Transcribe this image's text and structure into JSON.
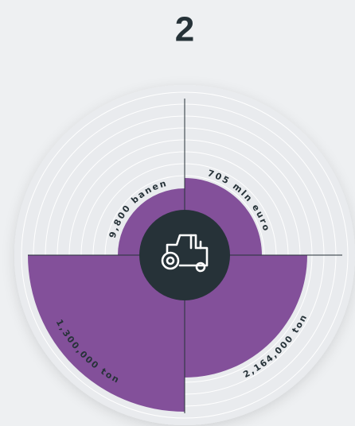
{
  "title": "2",
  "segments": [
    {
      "label": "9,800 banen"
    },
    {
      "label": "705 mln euro"
    },
    {
      "label": "2,164,000 ton"
    },
    {
      "label": "1,300,000 ton"
    }
  ]
}
